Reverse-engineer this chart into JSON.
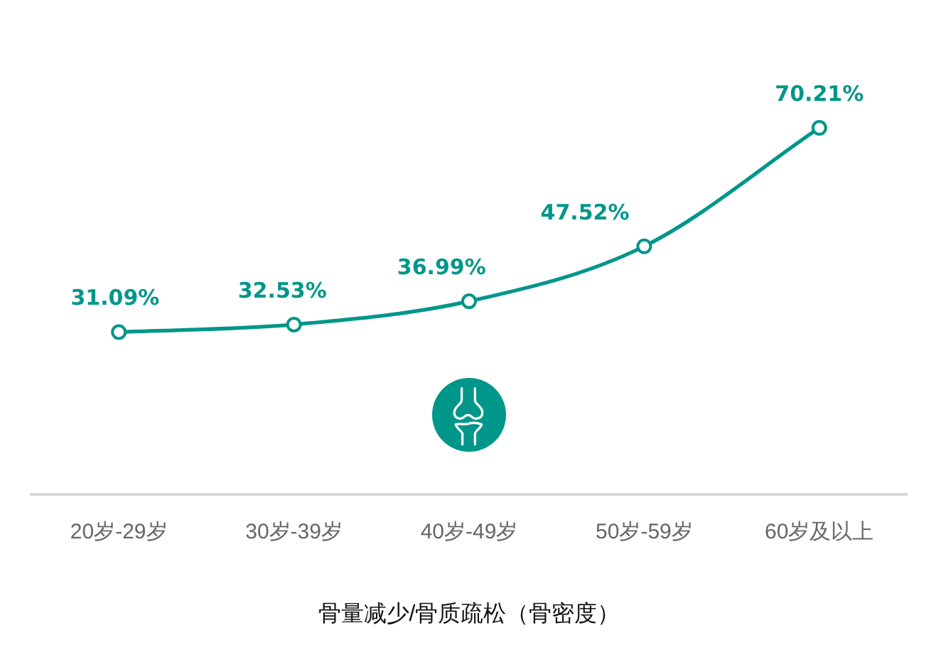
{
  "chart_data": {
    "type": "line",
    "xlabel": "骨量减少/骨质疏松（骨密度）",
    "categories": [
      "20岁-29岁",
      "30岁-39岁",
      "40岁-49岁",
      "50岁-59岁",
      "60岁及以上"
    ],
    "values": [
      31.09,
      32.53,
      36.99,
      47.52,
      70.21
    ],
    "value_labels": [
      "31.09%",
      "32.53%",
      "36.99%",
      "47.52%",
      "70.21%"
    ],
    "color": "#00968a",
    "tick_labels": "x",
    "marker": "circle",
    "line_style": "solid"
  }
}
